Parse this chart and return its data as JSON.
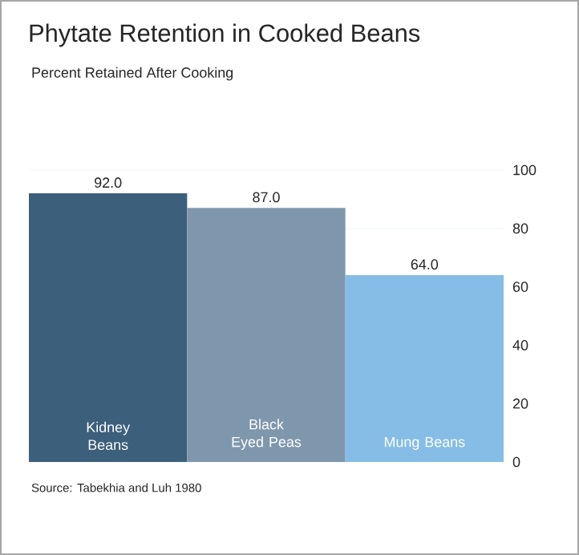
{
  "chart_data": {
    "type": "bar",
    "title": "Phytate Retention in Cooked Beans",
    "subtitle": "Percent Retained After Cooking",
    "categories": [
      "Kidney Beans",
      "Black Eyed Peas",
      "Mung Beans"
    ],
    "values": [
      92,
      87,
      64
    ],
    "colors": [
      "#3c5f7b",
      "#7f97ad",
      "#85bde6"
    ],
    "value_labels": [
      "92.0",
      "87.0",
      "64.0"
    ],
    "ylim": [
      0,
      100
    ],
    "yticks": [
      0,
      20,
      40,
      60,
      80,
      100
    ],
    "grid": "y",
    "annotations": [
      "Source: Tabekhia and Luh 1980"
    ]
  }
}
